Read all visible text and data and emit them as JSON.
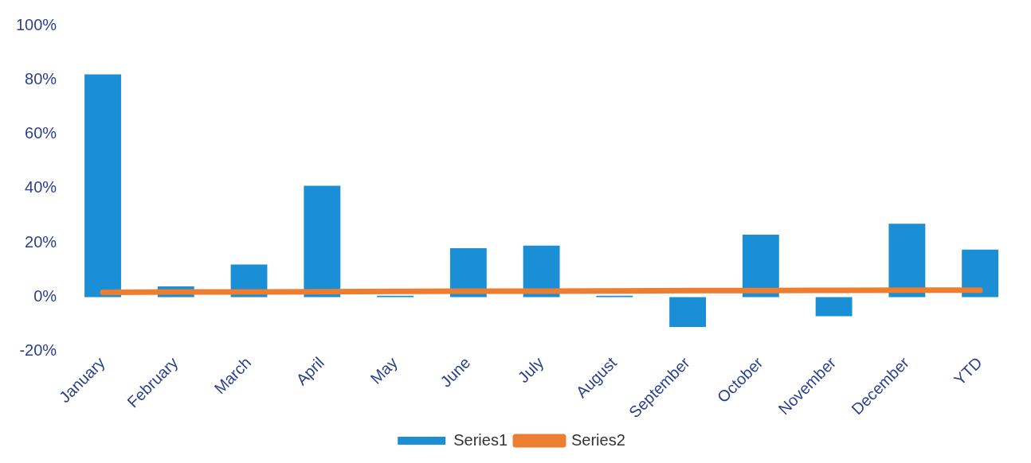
{
  "chart_data": {
    "type": "bar",
    "categories": [
      "January",
      "February",
      "March",
      "April",
      "May",
      "June",
      "July",
      "August",
      "September",
      "October",
      "November",
      "December",
      "YTD"
    ],
    "series": [
      {
        "name": "Series1",
        "color": "#1a8fd6",
        "values": [
          82,
          4,
          12,
          41,
          0.5,
          18,
          19,
          0.5,
          -11,
          23,
          -7,
          27,
          17.5
        ]
      },
      {
        "name": "Series2",
        "type": "line",
        "color": "#ed7d31",
        "values": [
          1.8,
          1.9,
          1.9,
          2.0,
          2.1,
          2.2,
          2.2,
          2.3,
          2.4,
          2.4,
          2.5,
          2.6,
          2.6
        ]
      }
    ],
    "ylim": [
      -20,
      100
    ],
    "yticks": [
      {
        "value": -20,
        "label": "-20%"
      },
      {
        "value": 0,
        "label": "0%"
      },
      {
        "value": 20,
        "label": "20%"
      },
      {
        "value": 40,
        "label": "40%"
      },
      {
        "value": 60,
        "label": "60%"
      },
      {
        "value": 80,
        "label": "80%"
      },
      {
        "value": 100,
        "label": "100%"
      }
    ],
    "grid": false,
    "legend": "bottom",
    "marker": "none"
  }
}
